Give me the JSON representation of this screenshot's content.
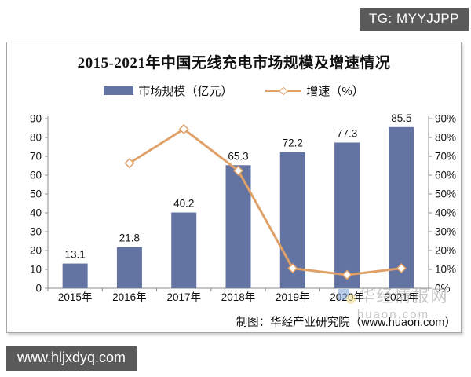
{
  "page": {
    "tg_badge": "TG: MYYJJPP",
    "site_badge": "www.hljxdyq.com"
  },
  "chart": {
    "title": "2015-2021年中国无线充电市场规模及增速情况",
    "legend": {
      "bar_label": "市场规模（亿元）",
      "line_label": "增速（%）"
    },
    "footer": "制图：华经产业研究院（www.huaon.com）",
    "watermark": {
      "name": "华经情报网",
      "domain": "huaon.com"
    }
  },
  "chart_data": {
    "type": "bar",
    "title": "2015-2021年中国无线充电市场规模及增速情况",
    "categories": [
      "2015年",
      "2016年",
      "2017年",
      "2018年",
      "2019年",
      "2020年",
      "2021年"
    ],
    "series": [
      {
        "name": "市场规模（亿元）",
        "type": "bar",
        "axis": "left",
        "values": [
          13.1,
          21.8,
          40.2,
          65.3,
          72.2,
          77.3,
          85.5
        ],
        "labels": [
          "13.1",
          "21.8",
          "40.2",
          "65.3",
          "72.2",
          "77.3",
          "85.5"
        ],
        "color": "#6474A2"
      },
      {
        "name": "增速（%）",
        "type": "line",
        "axis": "right",
        "values": [
          null,
          66.4,
          84.4,
          62.4,
          10.6,
          7.1,
          10.6
        ],
        "color": "#E0A169",
        "marker": "diamond-white"
      }
    ],
    "left_axis": {
      "min": 0,
      "max": 90,
      "step": 10,
      "suffix": "",
      "ticks": [
        "0",
        "10",
        "20",
        "30",
        "40",
        "50",
        "60",
        "70",
        "80",
        "90"
      ]
    },
    "right_axis": {
      "min": 0,
      "max": 90,
      "step": 10,
      "suffix": "%",
      "ticks": [
        "0%",
        "10%",
        "20%",
        "30%",
        "40%",
        "50%",
        "60%",
        "70%",
        "80%",
        "90%"
      ]
    },
    "grid": false,
    "legend_position": "top",
    "axis_color": "#8c8c8c",
    "label_color": "#111111"
  }
}
